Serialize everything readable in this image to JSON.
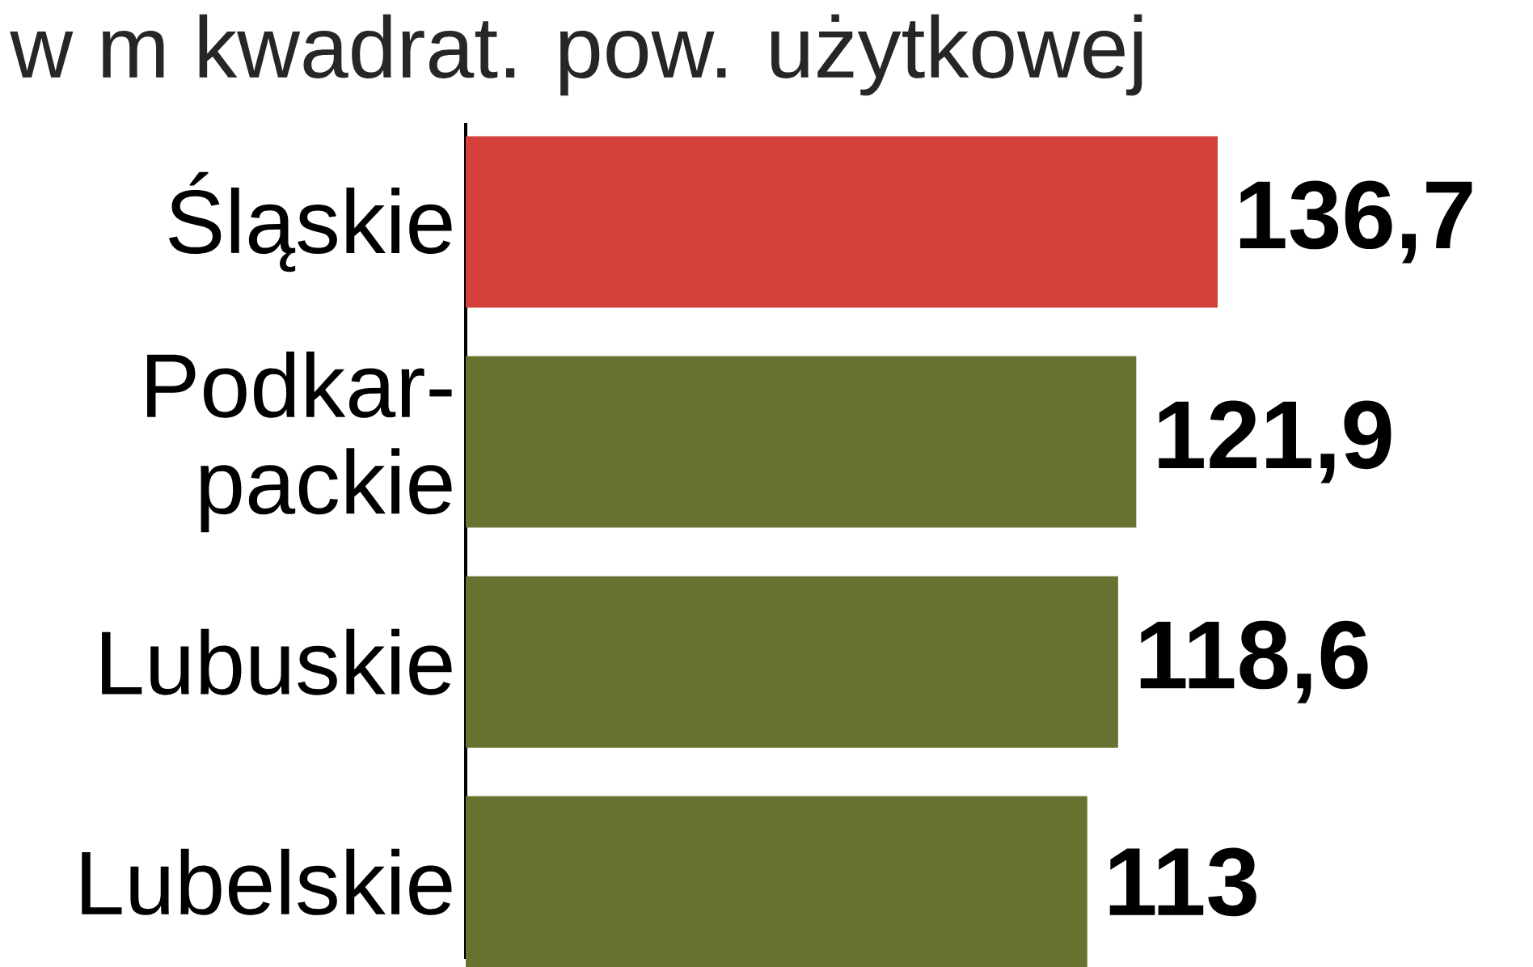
{
  "chart_data": {
    "type": "bar",
    "orientation": "horizontal",
    "title": "w m kwadrat. pow. użytkowej",
    "categories": [
      "Śląskie",
      "Podkar-packie",
      "Lubuskie",
      "Lubelskie"
    ],
    "values": [
      136.7,
      121.9,
      118.6,
      113
    ],
    "value_labels": [
      "136,7",
      "121,9",
      "118,6",
      "113"
    ],
    "colors": [
      "#d4403a",
      "#66722f",
      "#66722f",
      "#66722f"
    ],
    "tick_labels": "y"
  }
}
